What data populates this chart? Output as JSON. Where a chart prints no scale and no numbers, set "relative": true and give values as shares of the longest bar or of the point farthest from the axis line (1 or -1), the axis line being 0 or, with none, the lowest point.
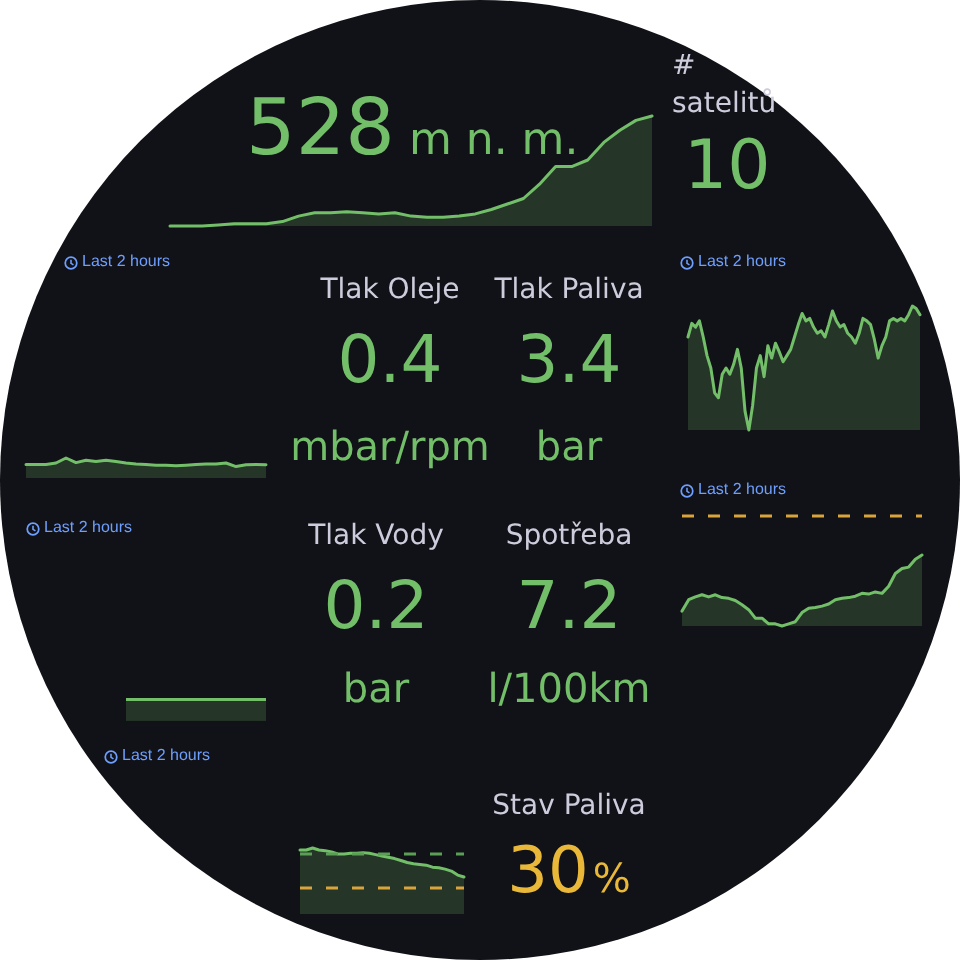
{
  "chart_data": [
    {
      "type": "area",
      "relative": true,
      "categories": [
        null,
        null,
        null,
        null,
        null,
        null,
        null,
        null,
        null,
        null,
        null,
        null,
        null,
        null,
        null,
        null,
        null,
        null,
        null,
        null,
        null,
        null,
        null,
        null,
        null,
        null,
        null,
        null,
        null,
        null,
        null
      ],
      "values": [
        0,
        0,
        0,
        0.01,
        0.02,
        0.02,
        0.02,
        0.04,
        0.09,
        0.12,
        0.12,
        0.13,
        0.12,
        0.11,
        0.12,
        0.09,
        0.08,
        0.08,
        0.09,
        0.11,
        0.15,
        0.2,
        0.25,
        0.38,
        0.54,
        0.54,
        0.6,
        0.76,
        0.87,
        0.96,
        1
      ],
      "color": "#73bf69",
      "annotations": [
        "528",
        "m n. m."
      ]
    },
    {
      "type": "other",
      "title": "# satelitů",
      "annotations": [
        "10"
      ],
      "color": "#73bf69"
    },
    {
      "type": "area",
      "relative": true,
      "subtitle": "Last 2 hours",
      "categories": [
        null,
        null,
        null,
        null,
        null,
        null,
        null,
        null,
        null,
        null,
        null,
        null,
        null,
        null,
        null,
        null,
        null,
        null,
        null,
        null,
        null,
        null,
        null,
        null,
        null
      ],
      "values": [
        0.68,
        0.68,
        0.68,
        0.75,
        1,
        0.77,
        0.89,
        0.82,
        0.89,
        0.82,
        0.75,
        0.7,
        0.68,
        0.64,
        0.64,
        0.61,
        0.64,
        0.68,
        0.7,
        0.7,
        0.75,
        0.57,
        0.66,
        0.68,
        0.66
      ],
      "color": "#73bf69"
    },
    {
      "type": "other",
      "title": "Tlak Oleje",
      "annotations": [
        "0.4",
        "mbar/rpm"
      ],
      "color": "#73bf69"
    },
    {
      "type": "other",
      "title": "Tlak Paliva",
      "annotations": [
        "3.4",
        "bar"
      ],
      "color": "#73bf69"
    },
    {
      "type": "area",
      "relative": true,
      "subtitle": "Last 2 hours",
      "categories": [
        null,
        null,
        null,
        null,
        null,
        null,
        null,
        null,
        null,
        null,
        null,
        null,
        null,
        null,
        null,
        null,
        null,
        null,
        null,
        null,
        null,
        null,
        null,
        null,
        null,
        null,
        null,
        null,
        null,
        null,
        null,
        null,
        null,
        null,
        null,
        null,
        null,
        null,
        null,
        null,
        null,
        null,
        null,
        null,
        null,
        null,
        null,
        null,
        null,
        null,
        null,
        null,
        null,
        null,
        null,
        null,
        null,
        null,
        null,
        null,
        null,
        null
      ],
      "values": [
        0.75,
        0.86,
        0.83,
        0.88,
        0.75,
        0.6,
        0.5,
        0.3,
        0.26,
        0.45,
        0.5,
        0.45,
        0.53,
        0.65,
        0.5,
        0.15,
        0,
        0.2,
        0.5,
        0.6,
        0.43,
        0.68,
        0.58,
        0.7,
        0.63,
        0.55,
        0.6,
        0.65,
        0.75,
        0.85,
        0.94,
        0.88,
        0.9,
        0.83,
        0.78,
        0.8,
        0.75,
        0.85,
        0.96,
        0.88,
        0.83,
        0.85,
        0.78,
        0.75,
        0.7,
        0.78,
        0.9,
        0.88,
        0.85,
        0.73,
        0.58,
        0.68,
        0.75,
        0.88,
        0.9,
        0.88,
        0.9,
        0.88,
        0.93,
        1,
        0.98,
        0.93
      ],
      "color": "#73bf69"
    },
    {
      "type": "other",
      "subtitle": "Last 2 hours",
      "color": "#73bf69"
    },
    {
      "type": "other",
      "title": "Tlak Vody",
      "annotations": [
        "0.2",
        "bar"
      ],
      "color": "#73bf69"
    },
    {
      "type": "other",
      "title": "Spotřeba",
      "annotations": [
        "7.2",
        "l/100km"
      ],
      "color": "#73bf69"
    },
    {
      "type": "area",
      "relative": true,
      "subtitle": "Last 2 hours",
      "categories": [
        null,
        null,
        null,
        null,
        null,
        null,
        null,
        null,
        null,
        null,
        null,
        null,
        null,
        null,
        null,
        null,
        null,
        null,
        null,
        null,
        null,
        null,
        null,
        null,
        null,
        null,
        null,
        null,
        null,
        null,
        null,
        null,
        null,
        null,
        null,
        null,
        null
      ],
      "values": [
        0.21,
        0.37,
        0.41,
        0.44,
        0.41,
        0.44,
        0.4,
        0.39,
        0.36,
        0.3,
        0.23,
        0.11,
        0.11,
        0.03,
        0.03,
        0,
        0.03,
        0.06,
        0.19,
        0.25,
        0.26,
        0.28,
        0.31,
        0.37,
        0.39,
        0.4,
        0.42,
        0.46,
        0.45,
        0.48,
        0.46,
        0.56,
        0.74,
        0.81,
        0.83,
        0.94,
        1
      ],
      "color": "#73bf69",
      "ref_lines": [
        {
          "axis": "y",
          "value": 1.55,
          "color": "#d9a43c",
          "line_style": "dashed"
        }
      ]
    },
    {
      "type": "area",
      "relative": true,
      "subtitle": "Last 2 hours",
      "categories": [
        null,
        null,
        null,
        null,
        null,
        null,
        null,
        null,
        null,
        null,
        null,
        null,
        null,
        null,
        null,
        null,
        null,
        null,
        null,
        null,
        null,
        null,
        null,
        null,
        null,
        null,
        null
      ],
      "values": [
        0.97,
        0.97,
        1,
        0.97,
        0.96,
        0.94,
        0.91,
        0.91,
        0.92,
        0.92,
        0.93,
        0.92,
        0.9,
        0.88,
        0.86,
        0.84,
        0.81,
        0.78,
        0.76,
        0.75,
        0.74,
        0.71,
        0.7,
        0.68,
        0.65,
        0.59,
        0.56
      ],
      "color": "#73bf69",
      "ref_lines": [
        {
          "axis": "y",
          "value": 0.92,
          "color": "#5b9e55",
          "line_style": "dashed"
        },
        {
          "axis": "y",
          "value": 0.4,
          "color": "#d9a43c",
          "line_style": "dashed"
        }
      ]
    },
    {
      "type": "other",
      "title": "Stav Paliva",
      "annotations": [
        "30",
        "%"
      ],
      "color": "#eab839"
    }
  ]
}
